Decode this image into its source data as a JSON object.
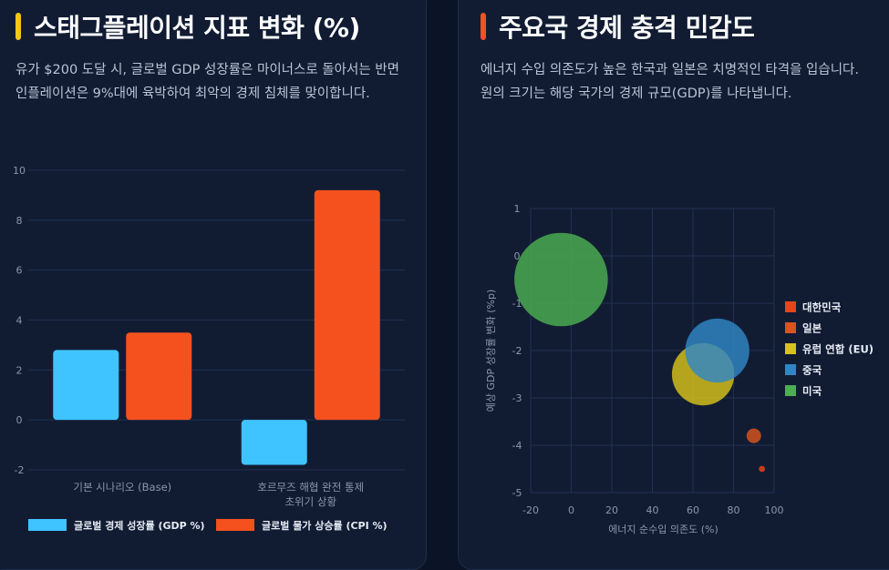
{
  "left": {
    "title": "스태그플레이션 지표 변화 (%)",
    "description": "유가 $200 도달 시, 글로벌 GDP 성장률은 마이너스로 돌아서는 반면 인플레이션은 9%대에 육박하여 최악의 경제 침체를 맞이합니다.",
    "accent_color": "#f5c518"
  },
  "right": {
    "title": "주요국 경제 충격 민감도",
    "description": "에너지 수입 의존도가 높은 한국과 일본은 치명적인 타격을 입습니다. 원의 크기는 해당 국가의 경제 규모(GDP)를 나타냅니다.",
    "accent_color": "#f4511e"
  },
  "chart_data": [
    {
      "type": "bar",
      "categories": [
        [
          "기본 시나리오 (Base)"
        ],
        [
          "호르무즈 해협 완전 통제",
          "초위기 상황"
        ]
      ],
      "series": [
        {
          "name": "글로벌 경제 성장률 (GDP %)",
          "values": [
            2.8,
            -1.8
          ],
          "color": "#40c4ff"
        },
        {
          "name": "글로벌 물가 상승률 (CPI %)",
          "values": [
            3.5,
            9.2
          ],
          "color": "#f4511e"
        }
      ],
      "ylim": [
        -2,
        10
      ],
      "yticks": [
        -2,
        0,
        2,
        4,
        6,
        8,
        10
      ],
      "grid": true,
      "legend": "bottom"
    },
    {
      "type": "scatter",
      "xlabel": "에너지 순수입 의존도 (%)",
      "ylabel": "예상 GDP 성장률 변화 (%p)",
      "xlim": [
        -20,
        100
      ],
      "ylim": [
        -5,
        1
      ],
      "xticks": [
        -20,
        0,
        20,
        40,
        60,
        80,
        100
      ],
      "yticks": [
        1,
        0,
        -1,
        -2,
        -3,
        -4,
        -5
      ],
      "grid": true,
      "legend": "right",
      "series": [
        {
          "name": "대한민국",
          "x": 94,
          "y": -4.5,
          "size": 1.8,
          "color": "#e8431c"
        },
        {
          "name": "일본",
          "x": 90,
          "y": -3.8,
          "size": 4.2,
          "color": "#d9541f"
        },
        {
          "name": "유럽 연합 (EU)",
          "x": 65,
          "y": -2.5,
          "size": 18.0,
          "color": "#d8c21a"
        },
        {
          "name": "중국",
          "x": 72,
          "y": -2.0,
          "size": 18.5,
          "color": "#2f86c6"
        },
        {
          "name": "미국",
          "x": -5,
          "y": -0.5,
          "size": 27.0,
          "color": "#4caf50"
        }
      ]
    }
  ]
}
